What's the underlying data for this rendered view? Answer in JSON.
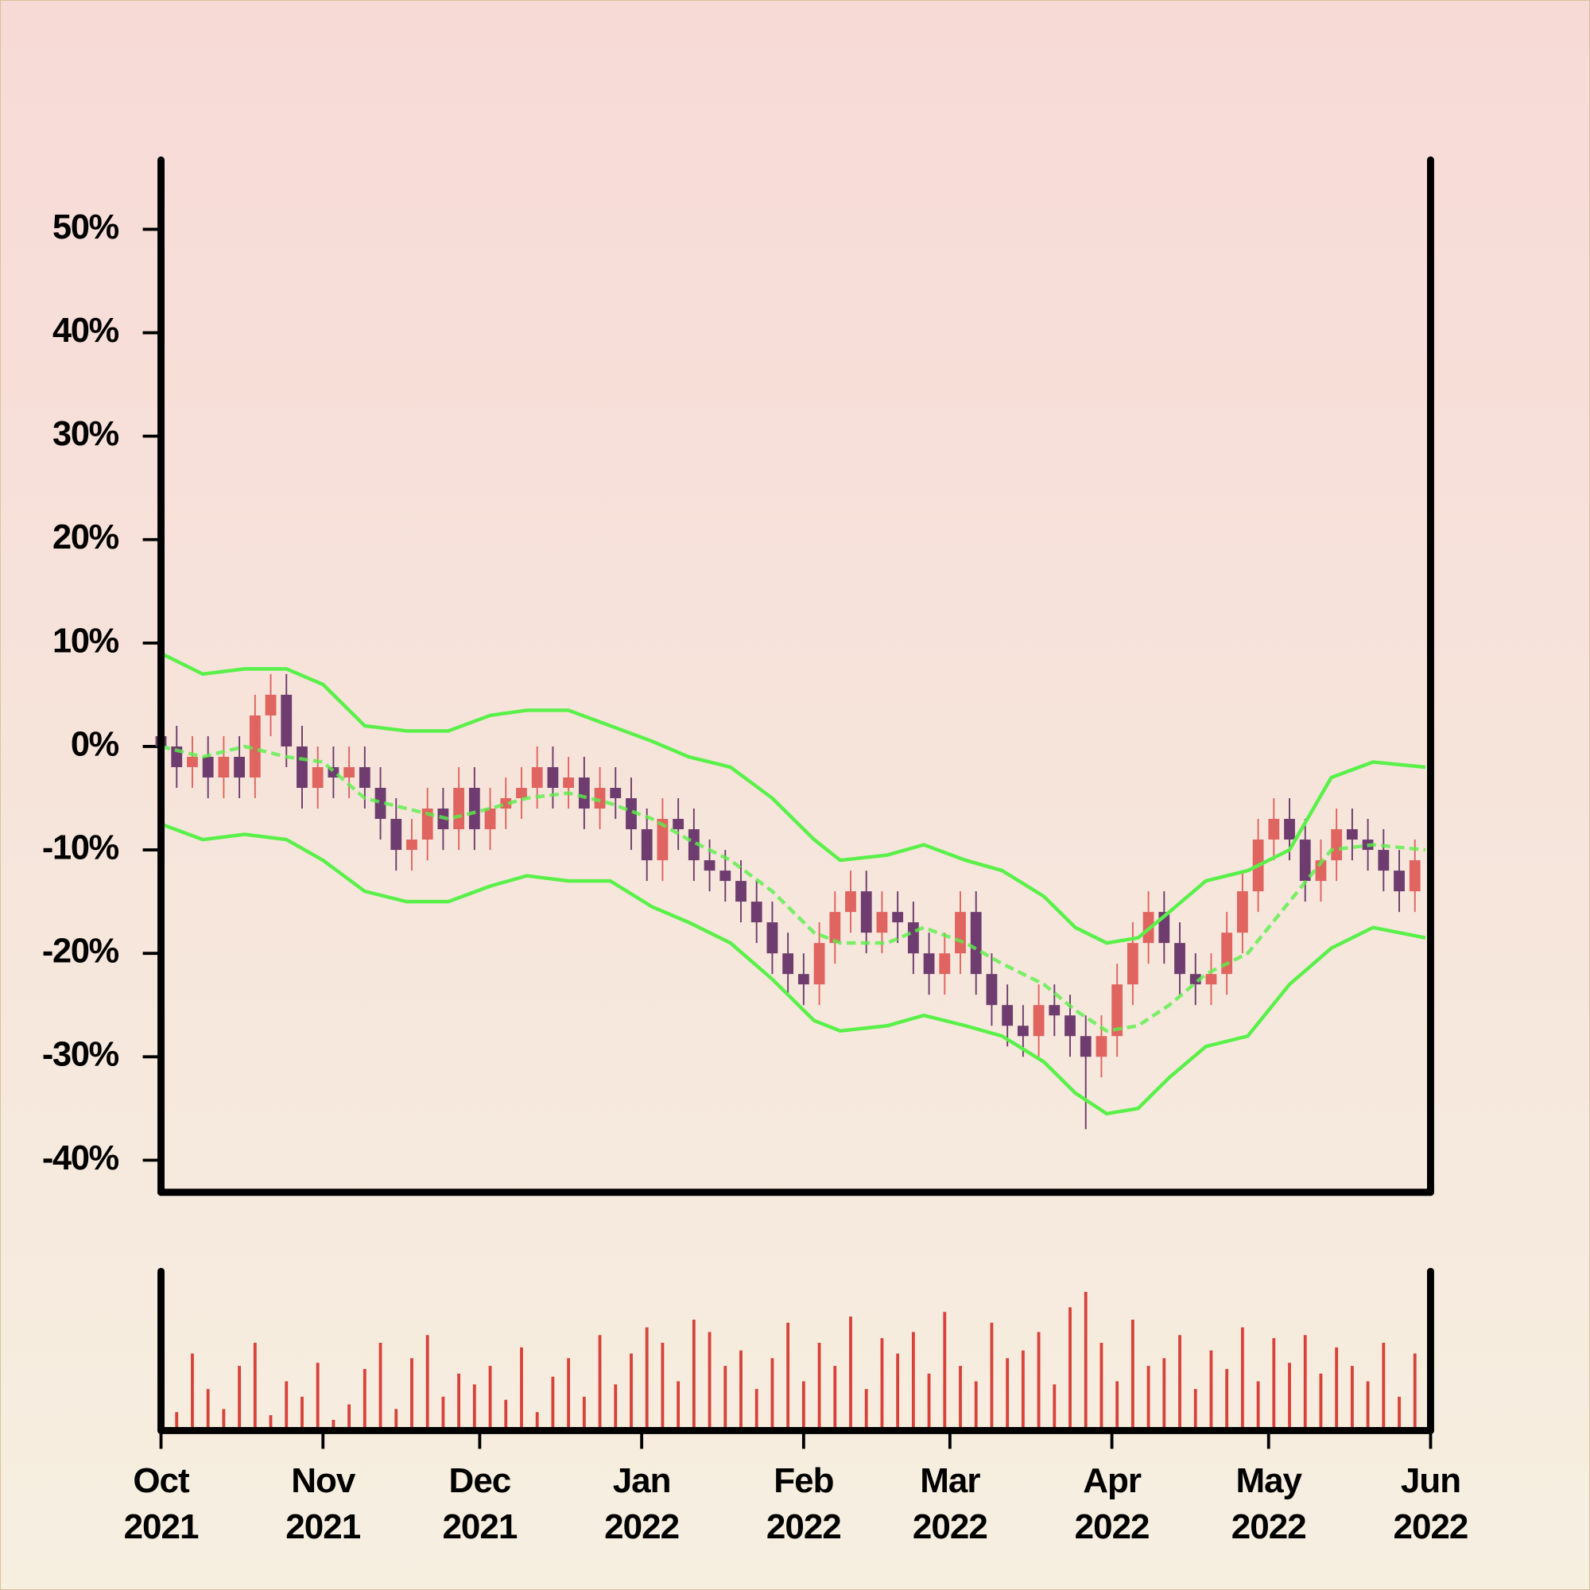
{
  "chart_data": {
    "type": "candlestick",
    "x": [
      0,
      3,
      6,
      9,
      12,
      15,
      18,
      21,
      24,
      27,
      30,
      33,
      36,
      39,
      42,
      45,
      48,
      51,
      54,
      57,
      60,
      63,
      66,
      69,
      72,
      75,
      78,
      81,
      84,
      87,
      90,
      93,
      96,
      99,
      102,
      105,
      108,
      111,
      114,
      117,
      120,
      123,
      126,
      129,
      132,
      135,
      138,
      141,
      144,
      147,
      150,
      153,
      156,
      159,
      162,
      165,
      168,
      171,
      174,
      177,
      180,
      183,
      186,
      189,
      192,
      195,
      198,
      201,
      204,
      207,
      210,
      213,
      216,
      219,
      222,
      225,
      228,
      231,
      234,
      237,
      240
    ],
    "open": [
      1,
      0,
      -2,
      -1,
      -3,
      -1,
      -3,
      3,
      5,
      0,
      -4,
      -2,
      -3,
      -2,
      -4,
      -7,
      -10,
      -9,
      -6,
      -8,
      -4,
      -8,
      -6,
      -5,
      -4,
      -2,
      -4,
      -3,
      -6,
      -4,
      -5,
      -8,
      -11,
      -7,
      -8,
      -11,
      -12,
      -13,
      -15,
      -17,
      -20,
      -22,
      -23,
      -19,
      -16,
      -14,
      -18,
      -16,
      -17,
      -20,
      -22,
      -20,
      -16,
      -22,
      -25,
      -27,
      -28,
      -25,
      -26,
      -28,
      -30,
      -28,
      -23,
      -19,
      -16,
      -19,
      -22,
      -23,
      -22,
      -18,
      -14,
      -9,
      -7,
      -9,
      -13,
      -11,
      -8,
      -9,
      -10,
      -12,
      -14
    ],
    "high": [
      3,
      2,
      1,
      1,
      1,
      1,
      5,
      7,
      7,
      2,
      0,
      0,
      0,
      0,
      -2,
      -5,
      -7,
      -4,
      -4,
      -2,
      -2,
      -4,
      -3,
      -2,
      0,
      0,
      -1,
      -1,
      -2,
      -2,
      -3,
      -6,
      -5,
      -5,
      -6,
      -9,
      -10,
      -11,
      -13,
      -15,
      -18,
      -20,
      -17,
      -14,
      -12,
      -12,
      -14,
      -14,
      -15,
      -18,
      -18,
      -14,
      -14,
      -20,
      -23,
      -25,
      -23,
      -23,
      -24,
      -26,
      -26,
      -21,
      -17,
      -14,
      -14,
      -17,
      -20,
      -20,
      -16,
      -12,
      -7,
      -5,
      -5,
      -7,
      -9,
      -6,
      -6,
      -7,
      -8,
      -10,
      -9
    ],
    "low": [
      -2,
      -4,
      -4,
      -5,
      -5,
      -5,
      -5,
      1,
      -2,
      -6,
      -6,
      -5,
      -5,
      -6,
      -9,
      -12,
      -12,
      -11,
      -10,
      -10,
      -10,
      -10,
      -8,
      -7,
      -6,
      -6,
      -6,
      -8,
      -8,
      -7,
      -10,
      -13,
      -13,
      -10,
      -13,
      -14,
      -15,
      -17,
      -19,
      -22,
      -24,
      -25,
      -25,
      -21,
      -18,
      -20,
      -20,
      -19,
      -22,
      -24,
      -24,
      -22,
      -24,
      -27,
      -29,
      -30,
      -30,
      -28,
      -30,
      -37,
      -32,
      -30,
      -25,
      -21,
      -21,
      -24,
      -25,
      -25,
      -24,
      -20,
      -16,
      -11,
      -11,
      -15,
      -15,
      -13,
      -11,
      -12,
      -14,
      -16,
      -16
    ],
    "close": [
      0,
      -2,
      -1,
      -3,
      -1,
      -3,
      3,
      5,
      0,
      -4,
      -2,
      -3,
      -2,
      -4,
      -7,
      -10,
      -9,
      -6,
      -8,
      -4,
      -8,
      -6,
      -5,
      -4,
      -2,
      -4,
      -3,
      -6,
      -4,
      -5,
      -8,
      -11,
      -7,
      -8,
      -11,
      -12,
      -13,
      -15,
      -17,
      -20,
      -22,
      -23,
      -19,
      -16,
      -14,
      -18,
      -16,
      -17,
      -20,
      -22,
      -20,
      -16,
      -22,
      -25,
      -27,
      -28,
      -25,
      -26,
      -28,
      -30,
      -28,
      -23,
      -19,
      -16,
      -19,
      -22,
      -23,
      -22,
      -18,
      -14,
      -9,
      -7,
      -9,
      -13,
      -11,
      -8,
      -9,
      -10,
      -12,
      -14,
      -11
    ],
    "volume": [
      35,
      10,
      48,
      25,
      12,
      40,
      55,
      8,
      30,
      20,
      42,
      5,
      15,
      38,
      55,
      12,
      45,
      60,
      20,
      35,
      28,
      40,
      18,
      52,
      10,
      33,
      45,
      20,
      60,
      28,
      48,
      65,
      55,
      30,
      70,
      62,
      40,
      50,
      25,
      45,
      68,
      30,
      55,
      40,
      72,
      25,
      58,
      48,
      62,
      35,
      75,
      40,
      30,
      68,
      45,
      50,
      62,
      28,
      78,
      88,
      55,
      30,
      70,
      40,
      45,
      60,
      25,
      50,
      38,
      65,
      30,
      58,
      42,
      60,
      35,
      52,
      40,
      30,
      55,
      20,
      48
    ],
    "up_color": "#e0645f",
    "down_color": "#6e3c6e",
    "volume_color": "#d8423a",
    "bands": {
      "x": [
        0,
        8,
        16,
        24,
        31,
        39,
        47,
        55,
        63,
        70,
        78,
        86,
        94,
        101,
        109,
        117,
        125,
        130,
        139,
        146,
        154,
        161,
        169,
        175,
        181,
        187,
        193,
        200,
        208,
        216,
        224,
        232,
        242
      ],
      "upper": [
        9,
        7,
        7.5,
        7.5,
        6,
        2,
        1.5,
        1.5,
        3,
        3.5,
        3.5,
        2,
        0.5,
        -1,
        -2,
        -5,
        -9,
        -11,
        -10.5,
        -9.5,
        -11,
        -12,
        -14.5,
        -17.5,
        -19,
        -18.5,
        -16,
        -13,
        -12,
        -10,
        -3,
        -1.5,
        -2
      ],
      "middle": [
        0,
        -1,
        0,
        -1,
        -1.5,
        -5,
        -6,
        -7,
        -6,
        -5,
        -4.5,
        -5.5,
        -7,
        -9,
        -11,
        -14,
        -18,
        -19,
        -19,
        -17.5,
        -19,
        -21,
        -23,
        -25.5,
        -27.5,
        -27,
        -25,
        -22,
        -20,
        -15,
        -10,
        -9.5,
        -10
      ],
      "lower": [
        -7.5,
        -9,
        -8.5,
        -9,
        -11,
        -14,
        -15,
        -15,
        -13.5,
        -12.5,
        -13,
        -13,
        -15.5,
        -17,
        -19,
        -22.5,
        -26.5,
        -27.5,
        -27,
        -26,
        -27,
        -28,
        -30.5,
        -33.5,
        -35.5,
        -35,
        -32,
        -29,
        -28,
        -23,
        -19.5,
        -17.5,
        -18.5
      ],
      "color": "#5af04a"
    },
    "xlim": [
      0,
      243
    ],
    "xticks": [
      {
        "value": 0,
        "label": "Oct 2021"
      },
      {
        "value": 31,
        "label": "Nov 2021"
      },
      {
        "value": 61,
        "label": "Dec 2021"
      },
      {
        "value": 92,
        "label": "Jan 2022"
      },
      {
        "value": 123,
        "label": "Feb 2022"
      },
      {
        "value": 151,
        "label": "Mar 2022"
      },
      {
        "value": 182,
        "label": "Apr 2022"
      },
      {
        "value": 212,
        "label": "May 2022"
      },
      {
        "value": 243,
        "label": "Jun 2022"
      }
    ],
    "ylim": [
      -43.1,
      56.7
    ],
    "yticks": [
      {
        "value": -40,
        "label": "-40%"
      },
      {
        "value": -30,
        "label": "-30%"
      },
      {
        "value": -20,
        "label": "-20%"
      },
      {
        "value": -10,
        "label": "-10%"
      },
      {
        "value": 0,
        "label": "0%"
      },
      {
        "value": 10,
        "label": "10%"
      },
      {
        "value": 20,
        "label": "20%"
      },
      {
        "value": 30,
        "label": "30%"
      },
      {
        "value": 40,
        "label": "40%"
      },
      {
        "value": 50,
        "label": "50%"
      }
    ],
    "volume_ylim": [
      0,
      100
    ]
  }
}
